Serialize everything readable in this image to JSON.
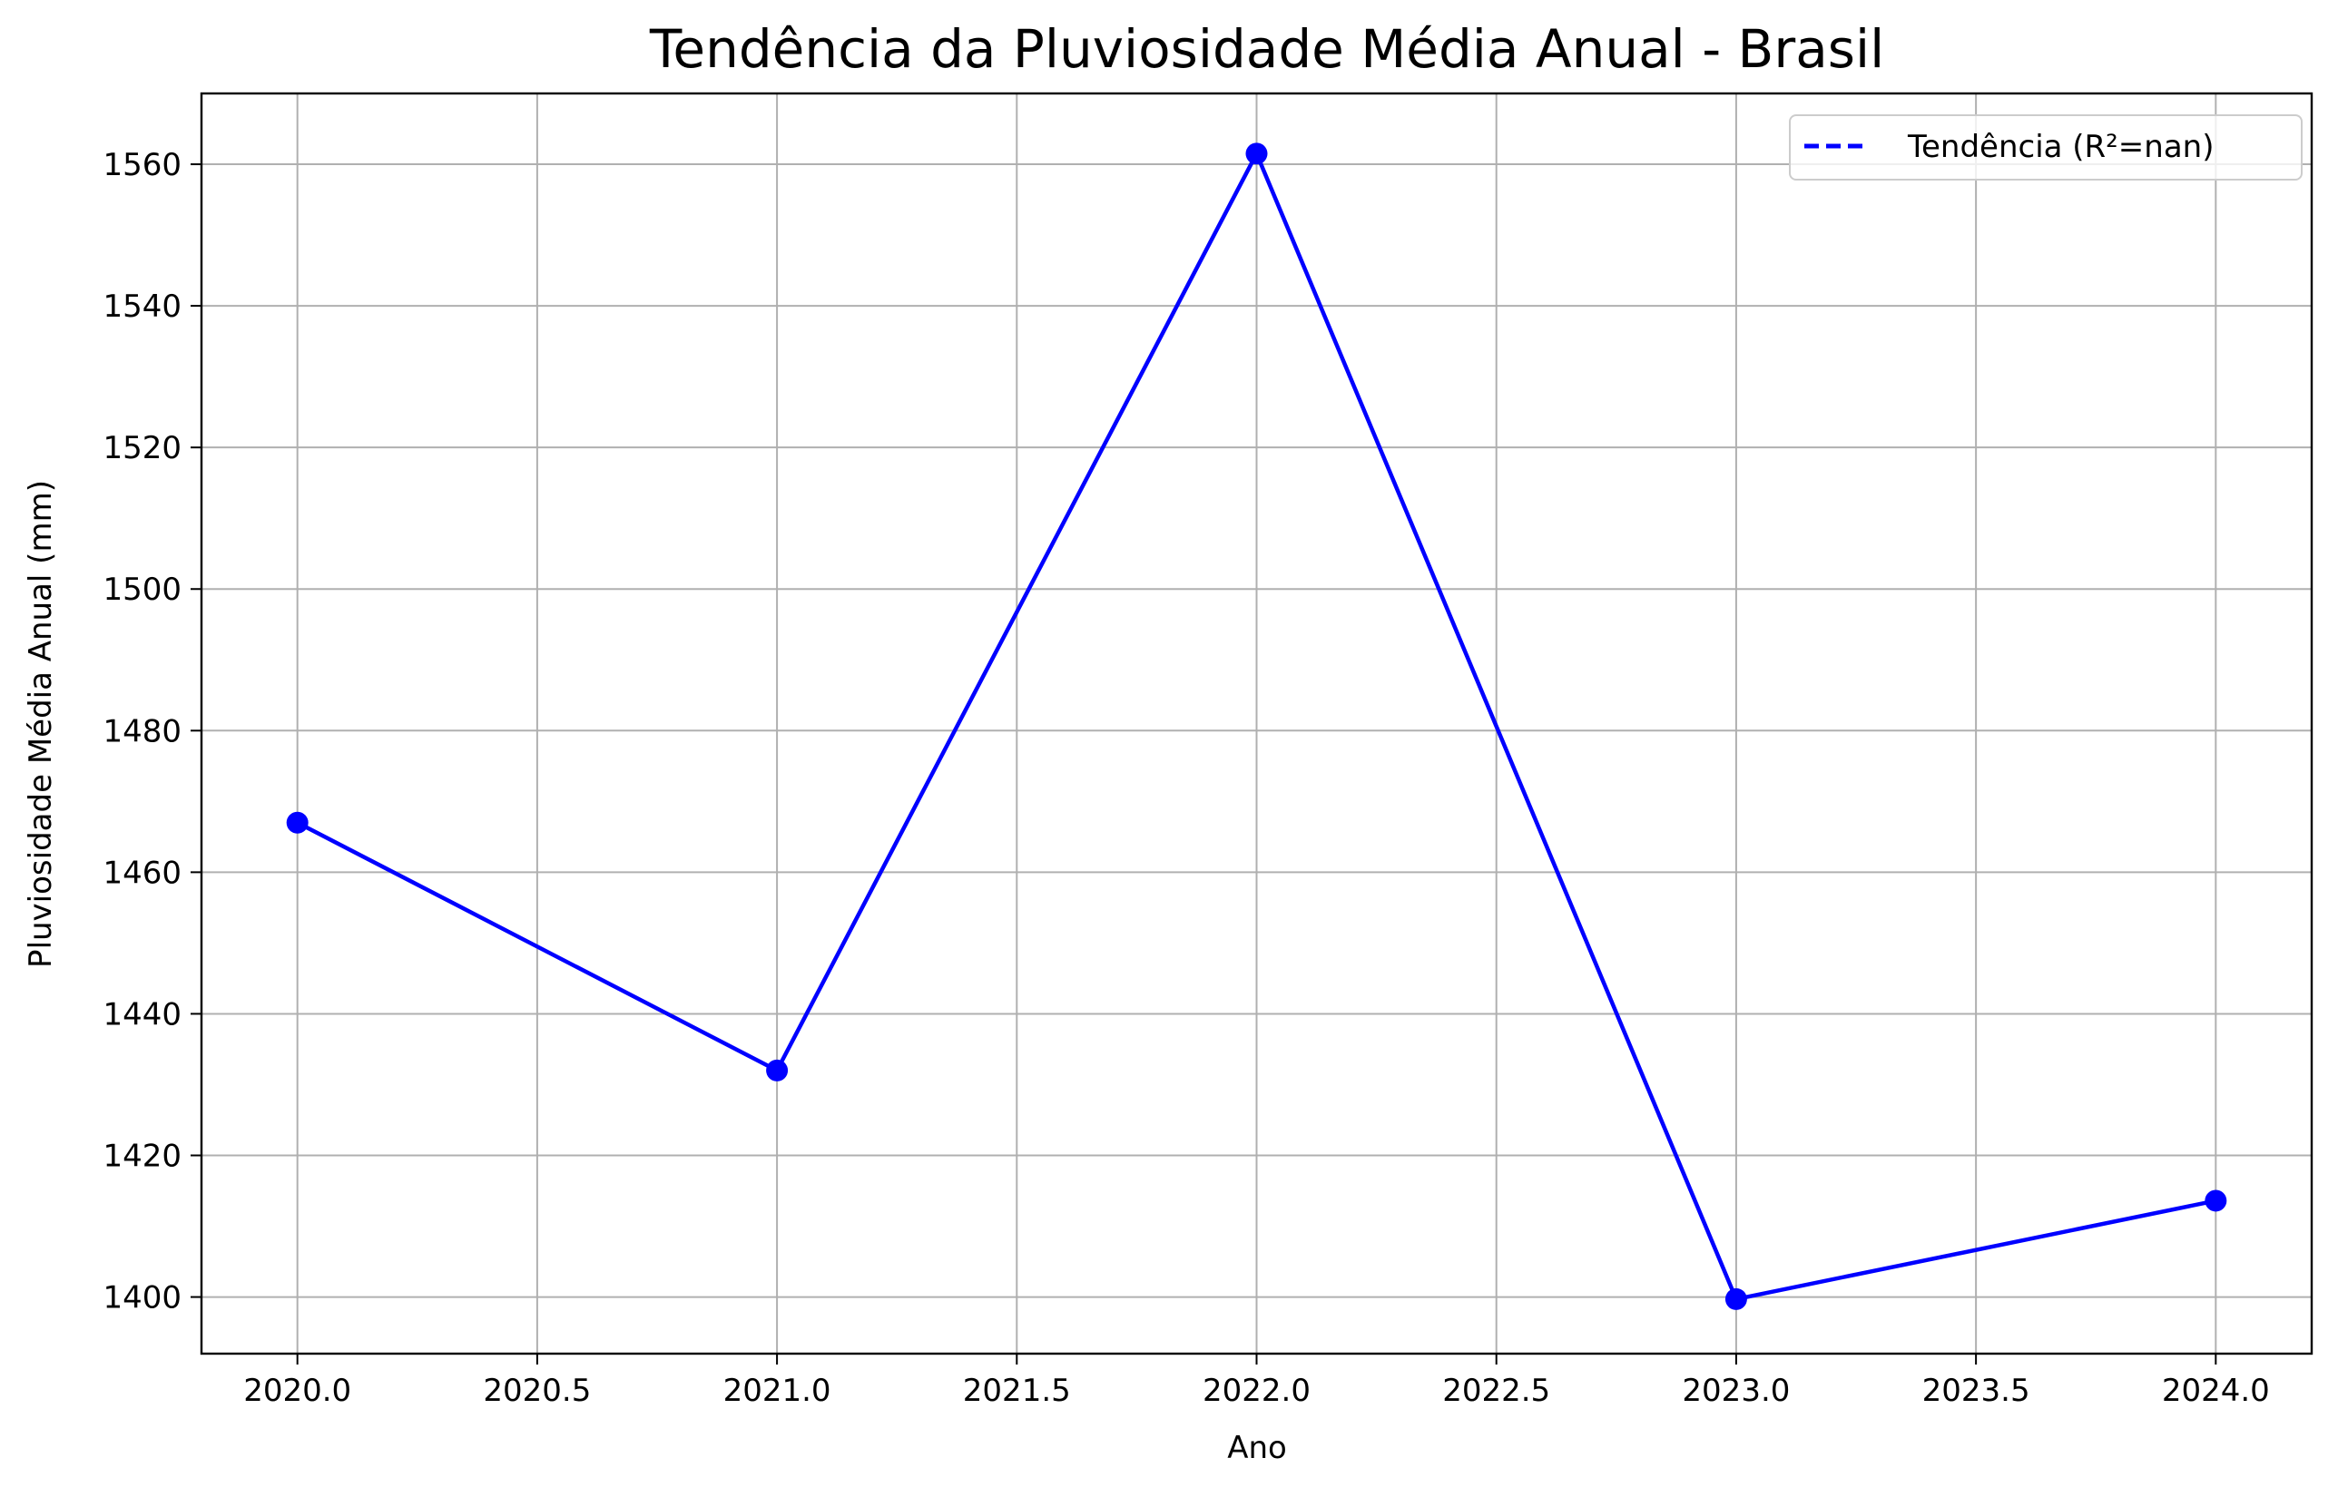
{
  "chart_data": {
    "type": "line",
    "title": "Tendência da Pluviosidade Média Anual - Brasil",
    "xlabel": "Ano",
    "ylabel": "Pluviosidade Média Anual (mm)",
    "xlim": [
      2019.8,
      2024.2
    ],
    "ylim": [
      1392,
      1570
    ],
    "x_ticks": [
      2020.0,
      2020.5,
      2021.0,
      2021.5,
      2022.0,
      2022.5,
      2023.0,
      2023.5,
      2024.0
    ],
    "x_tick_labels": [
      "2020.0",
      "2020.5",
      "2021.0",
      "2021.5",
      "2022.0",
      "2022.5",
      "2023.0",
      "2023.5",
      "2024.0"
    ],
    "y_ticks": [
      1400,
      1420,
      1440,
      1460,
      1480,
      1500,
      1520,
      1540,
      1560
    ],
    "y_tick_labels": [
      "1400",
      "1420",
      "1440",
      "1460",
      "1480",
      "1500",
      "1520",
      "1540",
      "1560"
    ],
    "grid": true,
    "legend_position": "top-right",
    "legend": [
      {
        "label": "Tendência (R²=nan)",
        "style": "dashed",
        "color": "#0000ff"
      }
    ],
    "series": [
      {
        "x": [
          2020,
          2021,
          2022,
          2023,
          2024
        ],
        "y": [
          1467,
          1432,
          1561.5,
          1399.7,
          1413.6
        ],
        "color": "#0000ff",
        "marker": "circle"
      }
    ]
  }
}
